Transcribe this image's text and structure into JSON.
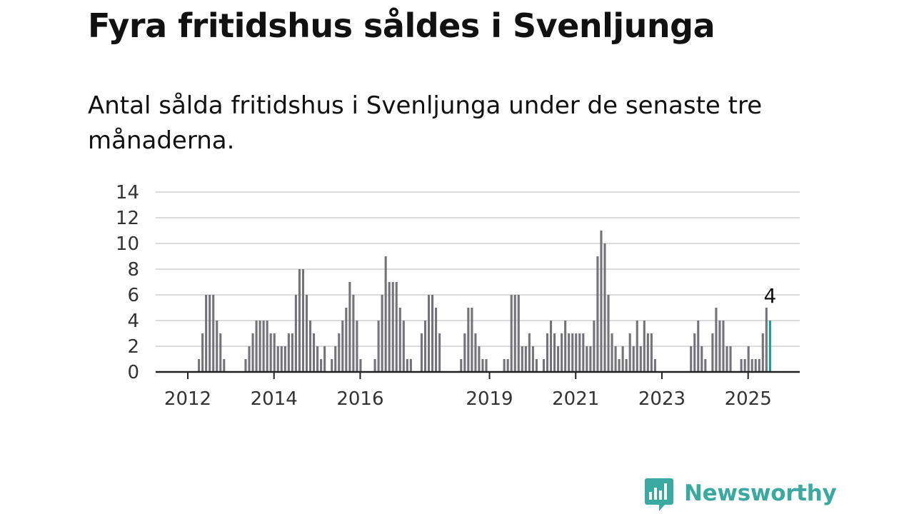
{
  "title": "Fyra fritidshus såldes i Svenljunga",
  "subtitle": "Antal sålda fritidshus i Svenljunga under de senaste tre månaderna.",
  "brand": {
    "name": "Newsworthy",
    "color": "#3aa99f"
  },
  "chart_data": {
    "type": "bar",
    "ylim": [
      0,
      14
    ],
    "yticks": [
      0,
      2,
      4,
      6,
      8,
      10,
      12,
      14
    ],
    "xtick_labels": [
      "2012",
      "2014",
      "2016",
      "2019",
      "2021",
      "2023",
      "2025"
    ],
    "bar_color": "#75737a",
    "highlight_color": "#1a9c96",
    "grid": true,
    "highlight_label": "4",
    "values": [
      0,
      0,
      0,
      1,
      3,
      6,
      6,
      6,
      4,
      3,
      1,
      0,
      0,
      0,
      0,
      0,
      1,
      2,
      3,
      4,
      4,
      4,
      4,
      3,
      3,
      2,
      2,
      2,
      3,
      3,
      6,
      8,
      8,
      6,
      4,
      3,
      2,
      1,
      2,
      0,
      1,
      2,
      3,
      4,
      5,
      7,
      6,
      4,
      1,
      0,
      0,
      0,
      1,
      4,
      6,
      9,
      7,
      7,
      7,
      5,
      4,
      1,
      1,
      0,
      0,
      3,
      4,
      6,
      6,
      5,
      3,
      0,
      0,
      0,
      0,
      0,
      1,
      3,
      5,
      5,
      3,
      2,
      1,
      1,
      0,
      0,
      0,
      0,
      1,
      1,
      6,
      6,
      6,
      2,
      2,
      3,
      2,
      1,
      0,
      1,
      3,
      4,
      3,
      2,
      3,
      4,
      3,
      3,
      3,
      3,
      3,
      2,
      2,
      4,
      9,
      11,
      10,
      6,
      3,
      2,
      1,
      2,
      1,
      3,
      2,
      4,
      2,
      4,
      3,
      3,
      1,
      0,
      0,
      0,
      0,
      0,
      0,
      0,
      0,
      0,
      2,
      3,
      4,
      2,
      1,
      0,
      3,
      5,
      4,
      4,
      2,
      2,
      0,
      0,
      1,
      1,
      2,
      1,
      1,
      1,
      3,
      5,
      4
    ]
  }
}
